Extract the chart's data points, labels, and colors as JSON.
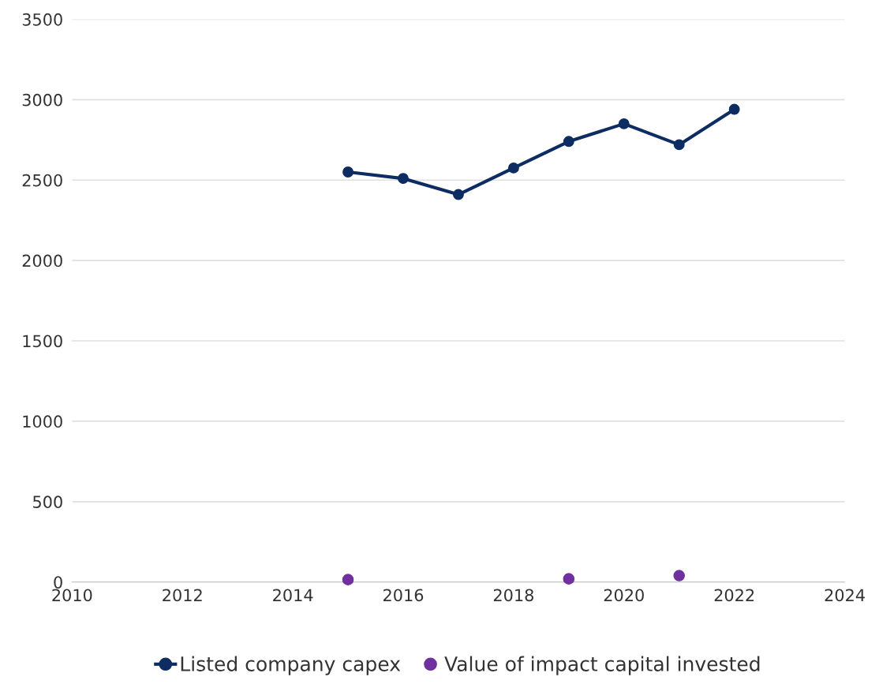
{
  "chart_data": {
    "type": "line",
    "x": [
      2015,
      2016,
      2017,
      2018,
      2019,
      2020,
      2021,
      2022
    ],
    "series": [
      {
        "name": "Listed company capex",
        "color": "#0d2d62",
        "values": [
          2550,
          2510,
          2410,
          2575,
          2740,
          2850,
          2720,
          2940
        ]
      },
      {
        "name": "Value of impact capital invested",
        "color": "#7030a0",
        "type": "scatter",
        "x": [
          2015,
          2019,
          2021
        ],
        "values": [
          15,
          20,
          40
        ]
      }
    ],
    "xlim": [
      2010,
      2024
    ],
    "xticks": [
      2010,
      2012,
      2014,
      2016,
      2018,
      2020,
      2022,
      2024
    ],
    "ylim": [
      0,
      3500
    ],
    "yticks": [
      0,
      500,
      1000,
      1500,
      2000,
      2500,
      3000,
      3500
    ],
    "grid": "y",
    "legend": "bottom",
    "marker": "circle"
  }
}
